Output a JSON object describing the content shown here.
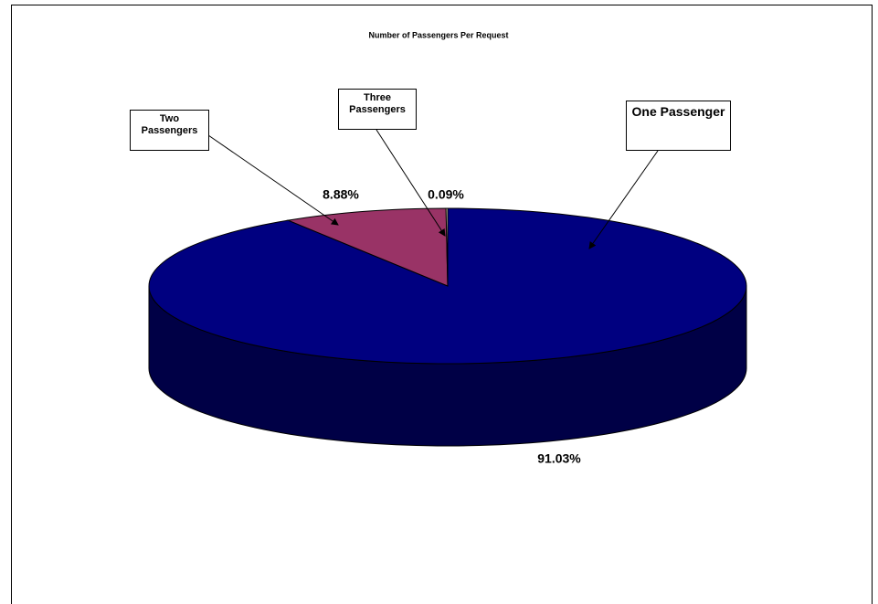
{
  "chart_data": {
    "type": "pie3d",
    "title": "Number of Passengers Per Request",
    "categories": [
      "One Passenger",
      "Two Passengers",
      "Three Passengers"
    ],
    "values": [
      91.03,
      8.88,
      0.09
    ],
    "value_labels": [
      "91.03%",
      "8.88%",
      "0.09%"
    ],
    "colors": [
      "#000080",
      "#993366",
      "#ffffcc"
    ]
  }
}
